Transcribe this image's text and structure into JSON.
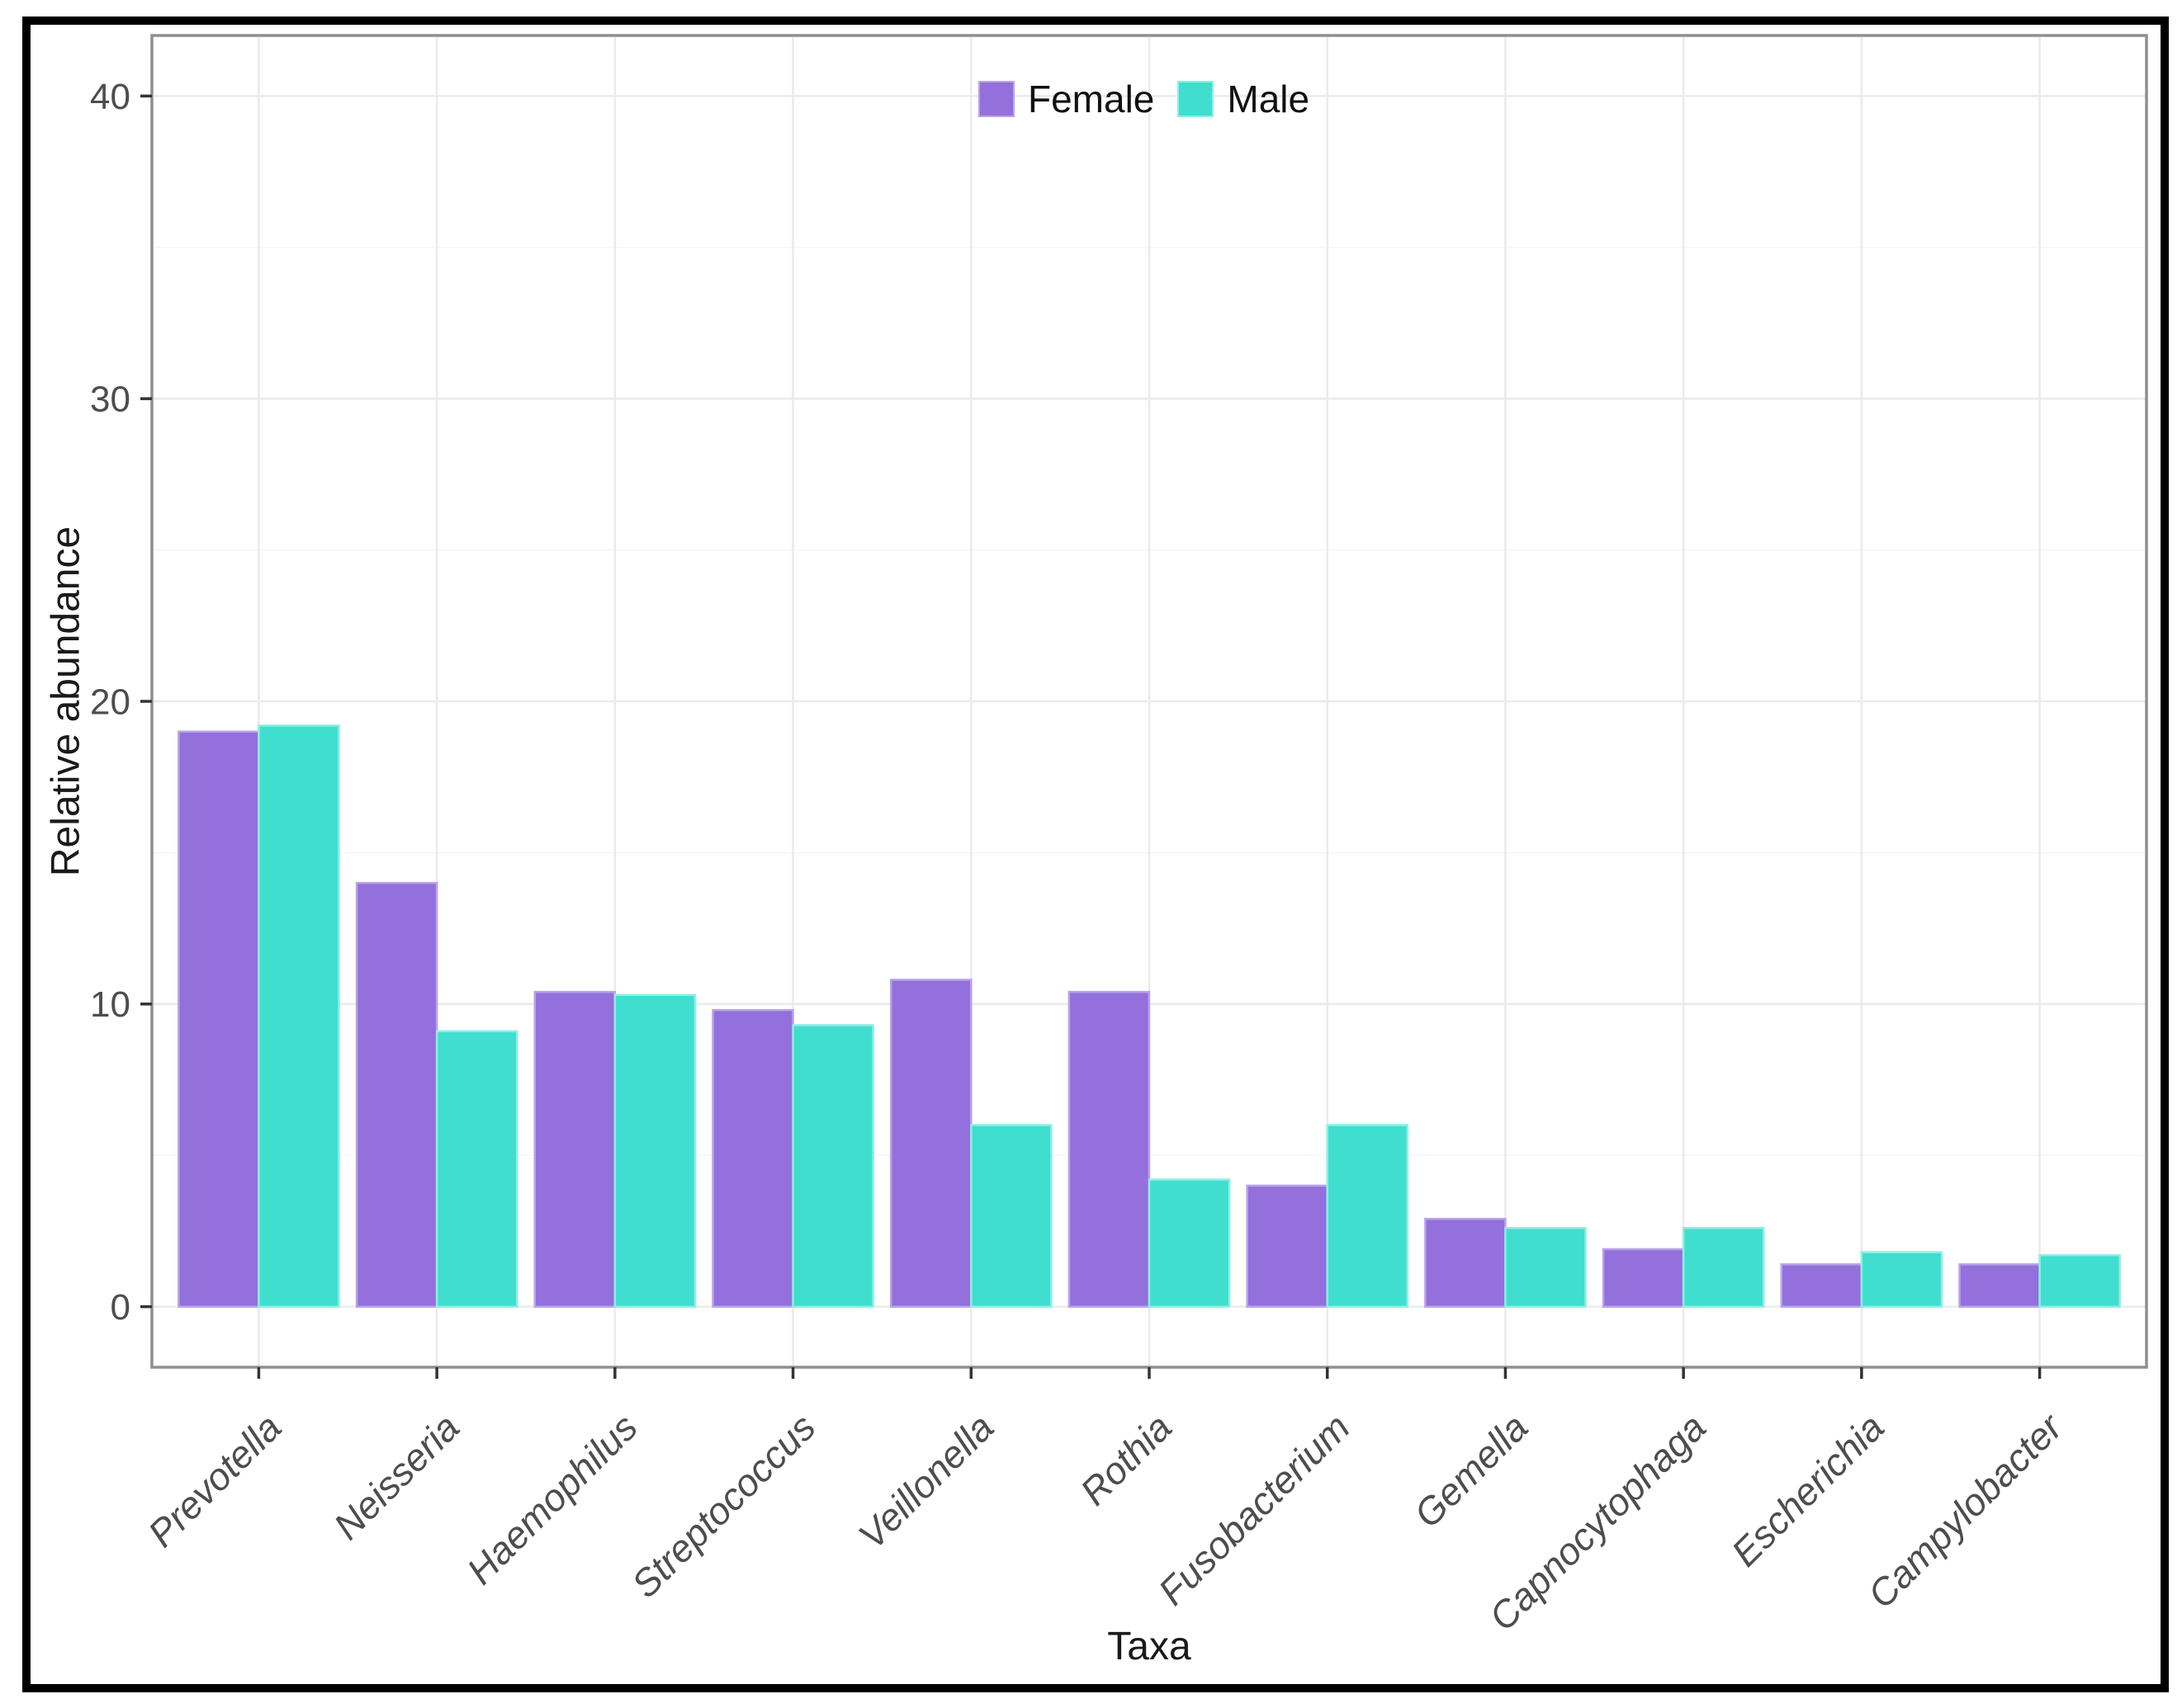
{
  "figure": {
    "frame_color": "#000000",
    "background": "#ffffff"
  },
  "chart_data": {
    "type": "bar",
    "title": "",
    "xlabel": "Taxa",
    "ylabel": "Relative abundance",
    "categories": [
      "Prevotella",
      "Neisseria",
      "Haemophilus",
      "Streptococcus",
      "Veillonella",
      "Rothia",
      "Fusobacterium",
      "Gemella",
      "Capnocytophaga",
      "Escherichia",
      "Campylobacter"
    ],
    "series": [
      {
        "name": "Female",
        "color": "#9370DB",
        "edge_color": "#B7A4EB",
        "values": [
          19.0,
          14.0,
          10.4,
          9.8,
          10.8,
          10.4,
          4.0,
          2.9,
          1.9,
          1.4,
          1.4
        ]
      },
      {
        "name": "Male",
        "color": "#40DECF",
        "edge_color": "#8DEFE3",
        "values": [
          19.2,
          9.1,
          10.3,
          9.3,
          6.0,
          4.2,
          6.0,
          2.6,
          2.6,
          1.8,
          1.7
        ]
      }
    ],
    "yticks": [
      0,
      10,
      20,
      30,
      40
    ],
    "ylim": [
      0,
      40
    ],
    "legend_position": "top-center",
    "grid": {
      "major_color": "#EBEBEB",
      "minor_color": "#F6F6F6",
      "horizontal_minor": true,
      "vertical_minor": false
    },
    "panel_border_color": "#8F8F8F",
    "tick_color": "#333333",
    "tick_label_color": "#4D4D4D",
    "axis_title_color": "#1A1A1A",
    "x_label_style": "italic",
    "bar_group_width": 0.9
  }
}
